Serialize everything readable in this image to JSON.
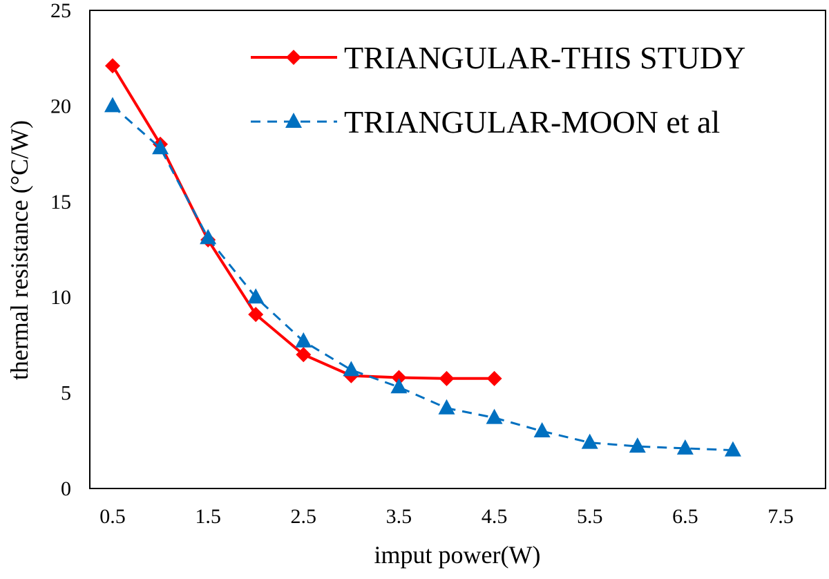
{
  "chart_data": {
    "type": "line",
    "xlabel": "imput power(W)",
    "ylabel": "thermal resistance (°C/W)",
    "xlim": [
      0.5,
      7.5
    ],
    "ylim": [
      0,
      25
    ],
    "x_ticks": [
      "0.5",
      "1.5",
      "2.5",
      "3.5",
      "4.5",
      "5.5",
      "6.5",
      "7.5"
    ],
    "y_ticks": [
      "0",
      "5",
      "10",
      "15",
      "20",
      "25"
    ],
    "grid": false,
    "legend_position": "top-right",
    "series": [
      {
        "name": "TRIANGULAR-THIS STUDY",
        "color": "#ff0000",
        "line_style": "solid",
        "marker": "diamond",
        "x": [
          0.5,
          1.0,
          1.5,
          2.0,
          2.5,
          3.0,
          3.5,
          4.0,
          4.5
        ],
        "y": [
          22.1,
          18.0,
          13.0,
          9.1,
          7.0,
          5.9,
          5.8,
          5.75,
          5.75
        ]
      },
      {
        "name": "TRIANGULAR-MOON et al",
        "color": "#0070c0",
        "line_style": "dashed",
        "marker": "triangle",
        "x": [
          0.5,
          1.0,
          1.5,
          2.0,
          2.5,
          3.0,
          3.5,
          4.0,
          4.5,
          5.0,
          5.5,
          6.0,
          6.5,
          7.0
        ],
        "y": [
          20.0,
          17.8,
          13.1,
          10.0,
          7.7,
          6.2,
          5.3,
          4.2,
          3.7,
          3.0,
          2.4,
          2.2,
          2.1,
          2.0
        ]
      }
    ]
  }
}
